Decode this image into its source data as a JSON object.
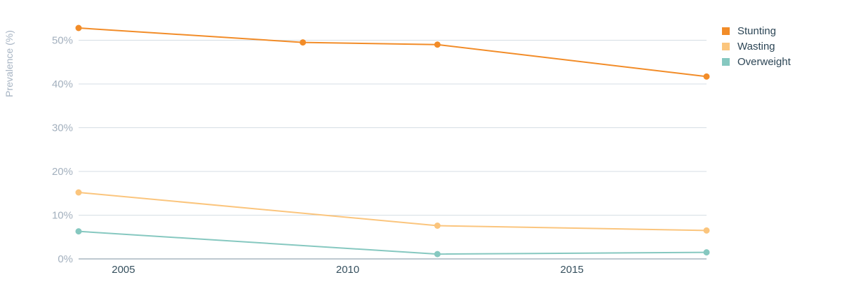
{
  "chart_data": {
    "type": "line",
    "title": "",
    "xlabel": "",
    "ylabel": "Prevalence (%)",
    "x_ticks": [
      "2005",
      "2010",
      "2015"
    ],
    "y_ticks": [
      "0%",
      "10%",
      "20%",
      "30%",
      "40%",
      "50%"
    ],
    "xlim": [
      2004,
      2018
    ],
    "ylim": [
      0,
      56
    ],
    "grid": true,
    "legend_position": "top-right",
    "series": [
      {
        "name": "Stunting",
        "color": "#f28c28",
        "points": [
          [
            2004,
            52.8
          ],
          [
            2009,
            49.5
          ],
          [
            2012,
            49.0
          ],
          [
            2018,
            41.7
          ]
        ]
      },
      {
        "name": "Wasting",
        "color": "#fbc57d",
        "points": [
          [
            2004,
            15.2
          ],
          [
            2012,
            7.6
          ],
          [
            2018,
            6.5
          ]
        ]
      },
      {
        "name": "Overweight",
        "color": "#86c8c0",
        "points": [
          [
            2004,
            6.3
          ],
          [
            2012,
            1.1
          ],
          [
            2018,
            1.5
          ]
        ]
      }
    ]
  }
}
